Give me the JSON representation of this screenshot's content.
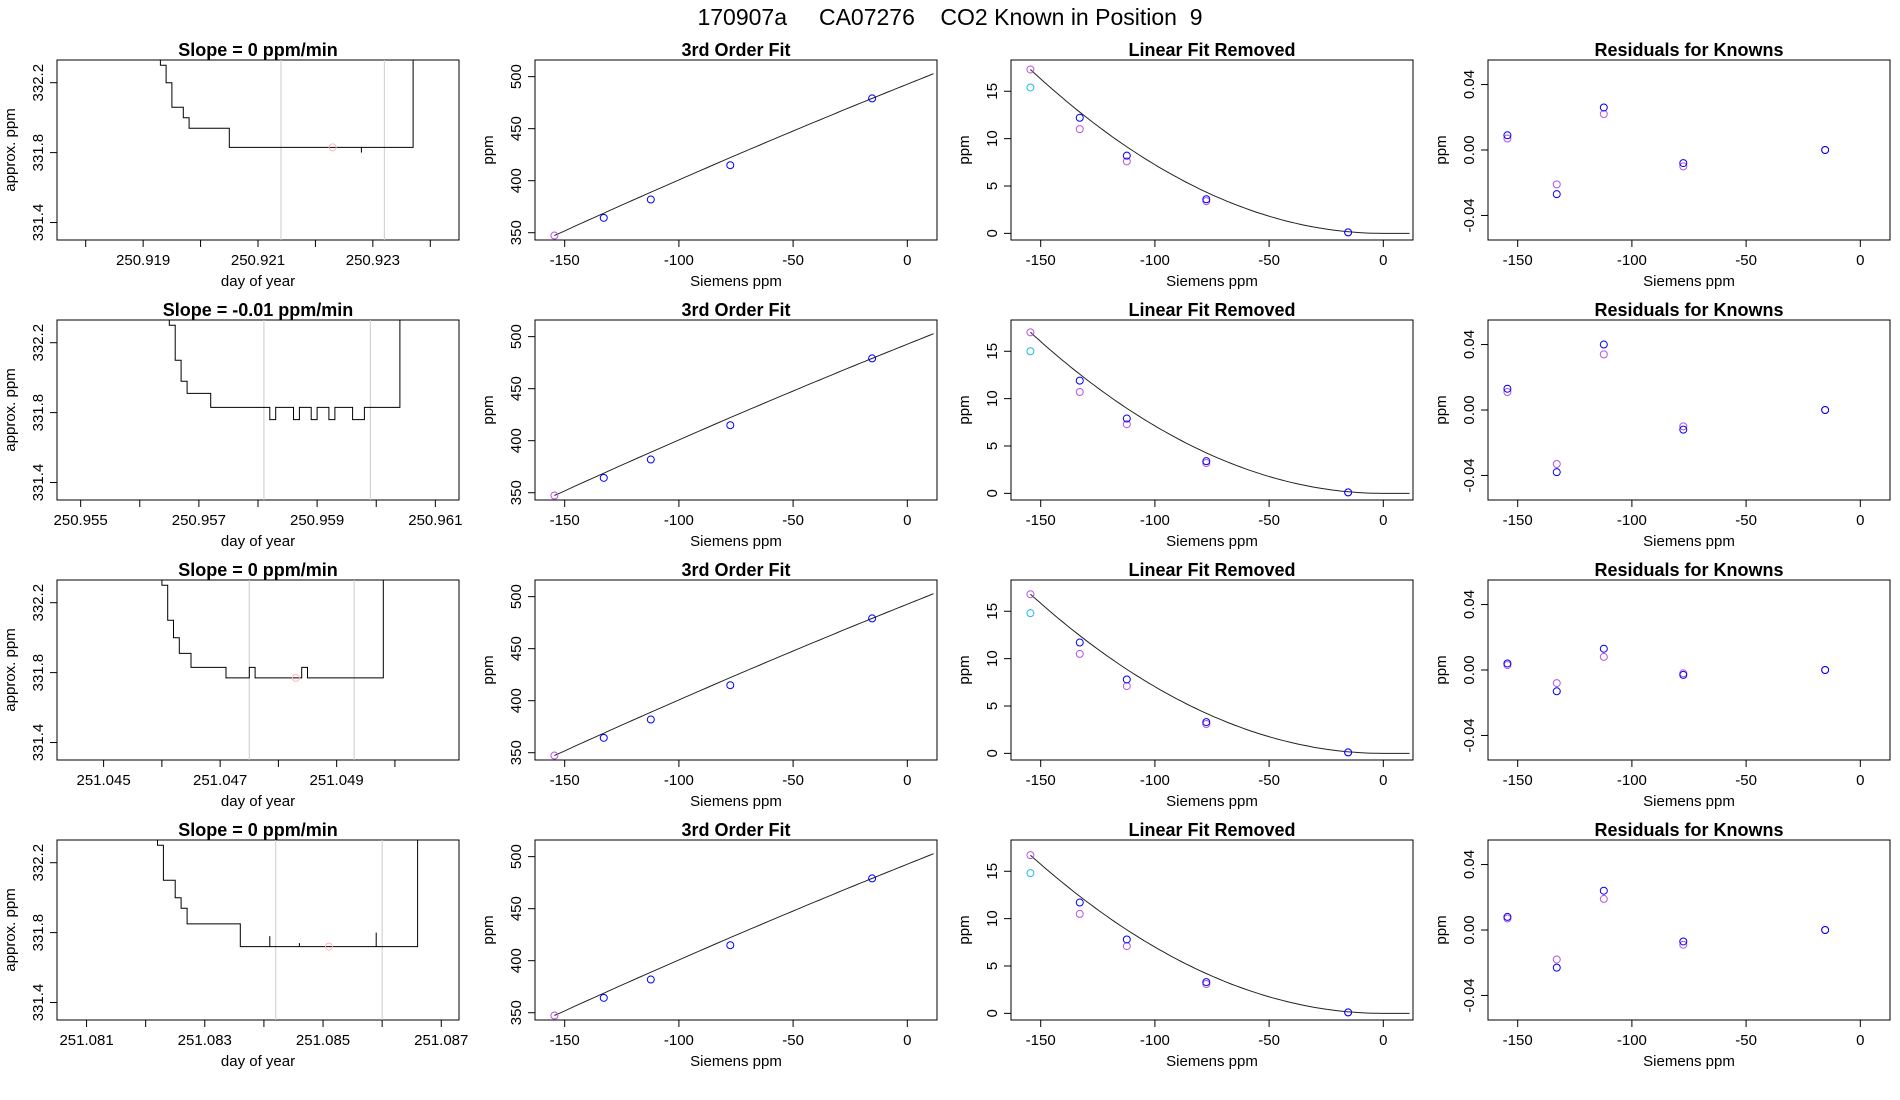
{
  "page": {
    "title": "170907a     CA07276    CO2 Known in Position  9"
  },
  "colors": {
    "axis": "#000000",
    "trace": "#000000",
    "window_line": "#cccccc",
    "mean_point": "#ffb6c1",
    "fit_line": "#222222",
    "known": "#0000ff",
    "measured": "#b854e0",
    "cyan": "#20b8e8"
  },
  "chart_data": [
    {
      "type": "line",
      "row": 0,
      "kind": "timeseries",
      "title": "Slope =  0  ppm/min",
      "xlabel": "day of year",
      "ylabel": "approx. ppm",
      "xlim": [
        250.9175,
        250.9245
      ],
      "ylim": [
        331.3,
        332.33
      ],
      "xticks": [
        "250.919",
        "250.921",
        "250.923"
      ],
      "yticks": [
        "331.4",
        "331.8",
        "332.2"
      ],
      "window": [
        250.9214,
        250.9232
      ],
      "mean_point": [
        250.9223,
        331.83
      ],
      "trace": [
        [
          250.9193,
          332.4
        ],
        [
          250.9193,
          332.3
        ],
        [
          250.9194,
          332.3
        ],
        [
          250.9194,
          332.2
        ],
        [
          250.9195,
          332.2
        ],
        [
          250.9195,
          332.06
        ],
        [
          250.9197,
          332.06
        ],
        [
          250.9197,
          332.0
        ],
        [
          250.9198,
          332.0
        ],
        [
          250.9198,
          331.94
        ],
        [
          250.9205,
          331.94
        ],
        [
          250.9205,
          331.83
        ],
        [
          250.9228,
          331.83
        ],
        [
          250.9228,
          331.8
        ],
        [
          250.9228,
          331.83
        ],
        [
          250.9237,
          331.83
        ],
        [
          250.9237,
          332.4
        ]
      ]
    },
    {
      "type": "line",
      "row": 1,
      "kind": "timeseries",
      "title": "Slope =  -0.01  ppm/min",
      "xlabel": "day of year",
      "ylabel": "approx. ppm",
      "xlim": [
        250.9546,
        250.9614
      ],
      "ylim": [
        331.3,
        332.33
      ],
      "xticks": [
        "250.955",
        "250.957",
        "250.959",
        "250.961"
      ],
      "yticks": [
        "331.4",
        "331.8",
        "332.2"
      ],
      "window": [
        250.9581,
        250.9599
      ],
      "mean_point": null,
      "trace": [
        [
          250.9565,
          332.4
        ],
        [
          250.9565,
          332.3
        ],
        [
          250.9566,
          332.3
        ],
        [
          250.9566,
          332.1
        ],
        [
          250.9567,
          332.1
        ],
        [
          250.9567,
          331.98
        ],
        [
          250.9568,
          331.98
        ],
        [
          250.9568,
          331.91
        ],
        [
          250.9572,
          331.91
        ],
        [
          250.9572,
          331.83
        ],
        [
          250.9582,
          331.83
        ],
        [
          250.9582,
          331.76
        ],
        [
          250.9583,
          331.76
        ],
        [
          250.9583,
          331.83
        ],
        [
          250.9586,
          331.83
        ],
        [
          250.9586,
          331.76
        ],
        [
          250.9587,
          331.76
        ],
        [
          250.9587,
          331.83
        ],
        [
          250.9589,
          331.83
        ],
        [
          250.9589,
          331.76
        ],
        [
          250.959,
          331.76
        ],
        [
          250.959,
          331.83
        ],
        [
          250.9592,
          331.83
        ],
        [
          250.9592,
          331.76
        ],
        [
          250.9593,
          331.76
        ],
        [
          250.9593,
          331.83
        ],
        [
          250.9596,
          331.83
        ],
        [
          250.9596,
          331.76
        ],
        [
          250.9598,
          331.76
        ],
        [
          250.9598,
          331.83
        ],
        [
          250.9604,
          331.83
        ],
        [
          250.9604,
          332.4
        ]
      ]
    },
    {
      "type": "line",
      "row": 2,
      "kind": "timeseries",
      "title": "Slope =  0  ppm/min",
      "xlabel": "day of year",
      "ylabel": "approx. ppm",
      "xlim": [
        251.0442,
        251.0511
      ],
      "ylim": [
        331.3,
        332.33
      ],
      "xticks": [
        "251.045",
        "251.047",
        "251.049"
      ],
      "yticks": [
        "331.4",
        "331.8",
        "332.2"
      ],
      "window": [
        251.0475,
        251.0493
      ],
      "mean_point": [
        251.0483,
        331.77
      ],
      "trace": [
        [
          251.046,
          332.4
        ],
        [
          251.046,
          332.3
        ],
        [
          251.0461,
          332.3
        ],
        [
          251.0461,
          332.1
        ],
        [
          251.0462,
          332.1
        ],
        [
          251.0462,
          332.0
        ],
        [
          251.0463,
          332.0
        ],
        [
          251.0463,
          331.91
        ],
        [
          251.0465,
          331.91
        ],
        [
          251.0465,
          331.83
        ],
        [
          251.0471,
          331.83
        ],
        [
          251.0471,
          331.77
        ],
        [
          251.0475,
          331.77
        ],
        [
          251.0475,
          331.83
        ],
        [
          251.0476,
          331.83
        ],
        [
          251.0476,
          331.77
        ],
        [
          251.0484,
          331.77
        ],
        [
          251.0484,
          331.83
        ],
        [
          251.0485,
          331.83
        ],
        [
          251.0485,
          331.77
        ],
        [
          251.0498,
          331.77
        ],
        [
          251.0498,
          332.4
        ]
      ]
    },
    {
      "type": "line",
      "row": 3,
      "kind": "timeseries",
      "title": "Slope =  0  ppm/min",
      "xlabel": "day of year",
      "ylabel": "approx. ppm",
      "xlim": [
        251.0805,
        251.0873
      ],
      "ylim": [
        331.3,
        332.33
      ],
      "xticks": [
        "251.081",
        "251.083",
        "251.085",
        "251.087"
      ],
      "yticks": [
        "331.4",
        "331.8",
        "332.2"
      ],
      "window": [
        251.0842,
        251.086
      ],
      "mean_point": [
        251.0851,
        331.72
      ],
      "trace": [
        [
          251.0822,
          332.4
        ],
        [
          251.0822,
          332.3
        ],
        [
          251.0823,
          332.3
        ],
        [
          251.0823,
          332.1
        ],
        [
          251.0825,
          332.1
        ],
        [
          251.0825,
          332.0
        ],
        [
          251.0826,
          332.0
        ],
        [
          251.0826,
          331.94
        ],
        [
          251.0827,
          331.94
        ],
        [
          251.0827,
          331.85
        ],
        [
          251.0836,
          331.85
        ],
        [
          251.0836,
          331.72
        ],
        [
          251.0841,
          331.72
        ],
        [
          251.0841,
          331.78
        ],
        [
          251.0841,
          331.72
        ],
        [
          251.0846,
          331.72
        ],
        [
          251.0846,
          331.74
        ],
        [
          251.0846,
          331.72
        ],
        [
          251.0859,
          331.72
        ],
        [
          251.0859,
          331.8
        ],
        [
          251.0859,
          331.72
        ],
        [
          251.0866,
          331.72
        ],
        [
          251.0866,
          332.4
        ]
      ]
    },
    {
      "type": "scatter",
      "row": 0,
      "kind": "fit",
      "title": "3rd Order Fit",
      "xlabel": "Siemens ppm",
      "ylabel": "ppm",
      "xlim": [
        -163,
        13
      ],
      "ylim": [
        343,
        516
      ],
      "xticks": [
        -150,
        -100,
        -50,
        0
      ],
      "yticks": [
        350,
        400,
        450,
        500
      ],
      "known_x": [
        -154.5,
        -132.9,
        -112.3,
        -77.5,
        -15.4
      ],
      "known_y": [
        347.3,
        364.3,
        381.9,
        414.9,
        479.1
      ],
      "curve": {
        "x1": -154.5,
        "y1": 347.3,
        "x2": -15.4,
        "y2": 479.1,
        "x_end": 12
      }
    },
    {
      "type": "scatter",
      "row": 1,
      "kind": "fit",
      "title": "3rd Order Fit",
      "xlabel": "Siemens ppm",
      "ylabel": "ppm",
      "xlim": [
        -163,
        13
      ],
      "ylim": [
        343,
        516
      ],
      "xticks": [
        -150,
        -100,
        -50,
        0
      ],
      "yticks": [
        350,
        400,
        450,
        500
      ],
      "known_x": [
        -154.5,
        -132.9,
        -112.3,
        -77.5,
        -15.4
      ],
      "known_y": [
        347.3,
        364.3,
        381.9,
        414.9,
        479.1
      ],
      "curve": {
        "x1": -154.5,
        "y1": 347.3,
        "x2": -15.4,
        "y2": 479.1,
        "x_end": 12
      }
    },
    {
      "type": "scatter",
      "row": 2,
      "kind": "fit",
      "title": "3rd Order Fit",
      "xlabel": "Siemens ppm",
      "ylabel": "ppm",
      "xlim": [
        -163,
        13
      ],
      "ylim": [
        343,
        516
      ],
      "xticks": [
        -150,
        -100,
        -50,
        0
      ],
      "yticks": [
        350,
        400,
        450,
        500
      ],
      "known_x": [
        -154.5,
        -132.9,
        -112.3,
        -77.5,
        -15.4
      ],
      "known_y": [
        347.3,
        364.3,
        381.9,
        414.9,
        479.1
      ],
      "curve": {
        "x1": -154.5,
        "y1": 347.3,
        "x2": -15.4,
        "y2": 479.1,
        "x_end": 12
      }
    },
    {
      "type": "scatter",
      "row": 3,
      "kind": "fit",
      "title": "3rd Order Fit",
      "xlabel": "Siemens ppm",
      "ylabel": "ppm",
      "xlim": [
        -163,
        13
      ],
      "ylim": [
        343,
        516
      ],
      "xticks": [
        -150,
        -100,
        -50,
        0
      ],
      "yticks": [
        350,
        400,
        450,
        500
      ],
      "known_x": [
        -154.5,
        -132.9,
        -112.3,
        -77.5,
        -15.4
      ],
      "known_y": [
        347.3,
        364.3,
        381.9,
        414.9,
        479.1
      ],
      "curve": {
        "x1": -154.5,
        "y1": 347.3,
        "x2": -15.4,
        "y2": 479.1,
        "x_end": 12
      }
    },
    {
      "type": "scatter",
      "row": 0,
      "kind": "linear_removed",
      "title": "Linear Fit Removed",
      "xlabel": "Siemens ppm",
      "ylabel": "ppm",
      "xlim": [
        -163,
        13
      ],
      "ylim": [
        -0.7,
        18.3
      ],
      "xticks": [
        -150,
        -100,
        -50,
        0
      ],
      "yticks": [
        0,
        5,
        10,
        15
      ],
      "known_x": [
        -154.5,
        -132.9,
        -112.3,
        -77.5,
        -15.4
      ],
      "known_y": [
        17.3,
        12.2,
        8.2,
        3.6,
        0.1
      ],
      "measured_x": [
        -154.5,
        -132.9,
        -112.3,
        -77.5,
        -15.4
      ],
      "measured_y": [
        17.3,
        11.0,
        7.6,
        3.4,
        0.1
      ],
      "cyan_point": [
        -154.5,
        15.4
      ],
      "curve": {
        "x0": 0,
        "a": 17.3,
        "b": 154.5,
        "x_end": 12
      }
    },
    {
      "type": "scatter",
      "row": 1,
      "kind": "linear_removed",
      "title": "Linear Fit Removed",
      "xlabel": "Siemens ppm",
      "ylabel": "ppm",
      "xlim": [
        -163,
        13
      ],
      "ylim": [
        -0.7,
        18.3
      ],
      "xticks": [
        -150,
        -100,
        -50,
        0
      ],
      "yticks": [
        0,
        5,
        10,
        15
      ],
      "known_x": [
        -154.5,
        -132.9,
        -112.3,
        -77.5,
        -15.4
      ],
      "known_y": [
        17.0,
        11.9,
        7.9,
        3.4,
        0.1
      ],
      "measured_x": [
        -154.5,
        -132.9,
        -112.3,
        -77.5,
        -15.4
      ],
      "measured_y": [
        17.0,
        10.7,
        7.3,
        3.2,
        0.1
      ],
      "cyan_point": [
        -154.5,
        15.0
      ],
      "curve": {
        "x0": 0,
        "a": 17.0,
        "b": 154.5,
        "x_end": 12
      }
    },
    {
      "type": "scatter",
      "row": 2,
      "kind": "linear_removed",
      "title": "Linear Fit Removed",
      "xlabel": "Siemens ppm",
      "ylabel": "ppm",
      "xlim": [
        -163,
        13
      ],
      "ylim": [
        -0.7,
        18.3
      ],
      "xticks": [
        -150,
        -100,
        -50,
        0
      ],
      "yticks": [
        0,
        5,
        10,
        15
      ],
      "known_x": [
        -154.5,
        -132.9,
        -112.3,
        -77.5,
        -15.4
      ],
      "known_y": [
        16.8,
        11.7,
        7.8,
        3.3,
        0.1
      ],
      "measured_x": [
        -154.5,
        -132.9,
        -112.3,
        -77.5,
        -15.4
      ],
      "measured_y": [
        16.8,
        10.5,
        7.1,
        3.1,
        0.1
      ],
      "cyan_point": [
        -154.5,
        14.8
      ],
      "curve": {
        "x0": 0,
        "a": 16.8,
        "b": 154.5,
        "x_end": 12
      }
    },
    {
      "type": "scatter",
      "row": 3,
      "kind": "linear_removed",
      "title": "Linear Fit Removed",
      "xlabel": "Siemens ppm",
      "ylabel": "ppm",
      "xlim": [
        -163,
        13
      ],
      "ylim": [
        -0.7,
        18.3
      ],
      "xticks": [
        -150,
        -100,
        -50,
        0
      ],
      "yticks": [
        0,
        5,
        10,
        15
      ],
      "known_x": [
        -154.5,
        -132.9,
        -112.3,
        -77.5,
        -15.4
      ],
      "known_y": [
        16.7,
        11.7,
        7.8,
        3.3,
        0.1
      ],
      "measured_x": [
        -154.5,
        -132.9,
        -112.3,
        -77.5,
        -15.4
      ],
      "measured_y": [
        16.7,
        10.5,
        7.1,
        3.1,
        0.1
      ],
      "cyan_point": [
        -154.5,
        14.8
      ],
      "curve": {
        "x0": 0,
        "a": 16.7,
        "b": 154.5,
        "x_end": 12
      }
    },
    {
      "type": "scatter",
      "row": 0,
      "kind": "residuals",
      "title": "Residuals for Knowns",
      "xlabel": "Siemens ppm",
      "ylabel": "ppm",
      "xlim": [
        -163,
        13
      ],
      "ylim": [
        -0.055,
        0.055
      ],
      "xticks": [
        -150,
        -100,
        -50,
        0
      ],
      "yticks": [
        "-0.04",
        "0.00",
        "0.04"
      ],
      "known_x": [
        -154.5,
        -132.9,
        -112.3,
        -77.5,
        -15.4
      ],
      "known_y": [
        0.009,
        -0.027,
        0.026,
        -0.008,
        0.0
      ],
      "measured_x": [
        -154.5,
        -132.9,
        -112.3,
        -77.5,
        -15.4
      ],
      "measured_y": [
        0.007,
        -0.021,
        0.022,
        -0.01,
        0.0
      ]
    },
    {
      "type": "scatter",
      "row": 1,
      "kind": "residuals",
      "title": "Residuals for Knowns",
      "xlabel": "Siemens ppm",
      "ylabel": "ppm",
      "xlim": [
        -163,
        13
      ],
      "ylim": [
        -0.055,
        0.055
      ],
      "xticks": [
        -150,
        -100,
        -50,
        0
      ],
      "yticks": [
        "-0.04",
        "0.00",
        "0.04"
      ],
      "known_x": [
        -154.5,
        -132.9,
        -112.3,
        -77.5,
        -15.4
      ],
      "known_y": [
        0.013,
        -0.038,
        0.04,
        -0.012,
        0.0
      ],
      "measured_x": [
        -154.5,
        -132.9,
        -112.3,
        -77.5,
        -15.4
      ],
      "measured_y": [
        0.011,
        -0.033,
        0.034,
        -0.01,
        0.0
      ]
    },
    {
      "type": "scatter",
      "row": 2,
      "kind": "residuals",
      "title": "Residuals for Knowns",
      "xlabel": "Siemens ppm",
      "ylabel": "ppm",
      "xlim": [
        -163,
        13
      ],
      "ylim": [
        -0.055,
        0.055
      ],
      "xticks": [
        -150,
        -100,
        -50,
        0
      ],
      "yticks": [
        "-0.04",
        "0.00",
        "0.04"
      ],
      "known_x": [
        -154.5,
        -132.9,
        -112.3,
        -77.5,
        -15.4
      ],
      "known_y": [
        0.004,
        -0.013,
        0.013,
        -0.003,
        0.0
      ],
      "measured_x": [
        -154.5,
        -132.9,
        -112.3,
        -77.5,
        -15.4
      ],
      "measured_y": [
        0.003,
        -0.008,
        0.008,
        -0.002,
        0.0
      ]
    },
    {
      "type": "scatter",
      "row": 3,
      "kind": "residuals",
      "title": "Residuals for Knowns",
      "xlabel": "Siemens ppm",
      "ylabel": "ppm",
      "xlim": [
        -163,
        13
      ],
      "ylim": [
        -0.055,
        0.055
      ],
      "xticks": [
        -150,
        -100,
        -50,
        0
      ],
      "yticks": [
        "-0.04",
        "0.00",
        "0.04"
      ],
      "known_x": [
        -154.5,
        -132.9,
        -112.3,
        -77.5,
        -15.4
      ],
      "known_y": [
        0.008,
        -0.023,
        0.024,
        -0.007,
        0.0
      ],
      "measured_x": [
        -154.5,
        -132.9,
        -112.3,
        -77.5,
        -15.4
      ],
      "measured_y": [
        0.007,
        -0.018,
        0.019,
        -0.009,
        0.0
      ]
    }
  ]
}
